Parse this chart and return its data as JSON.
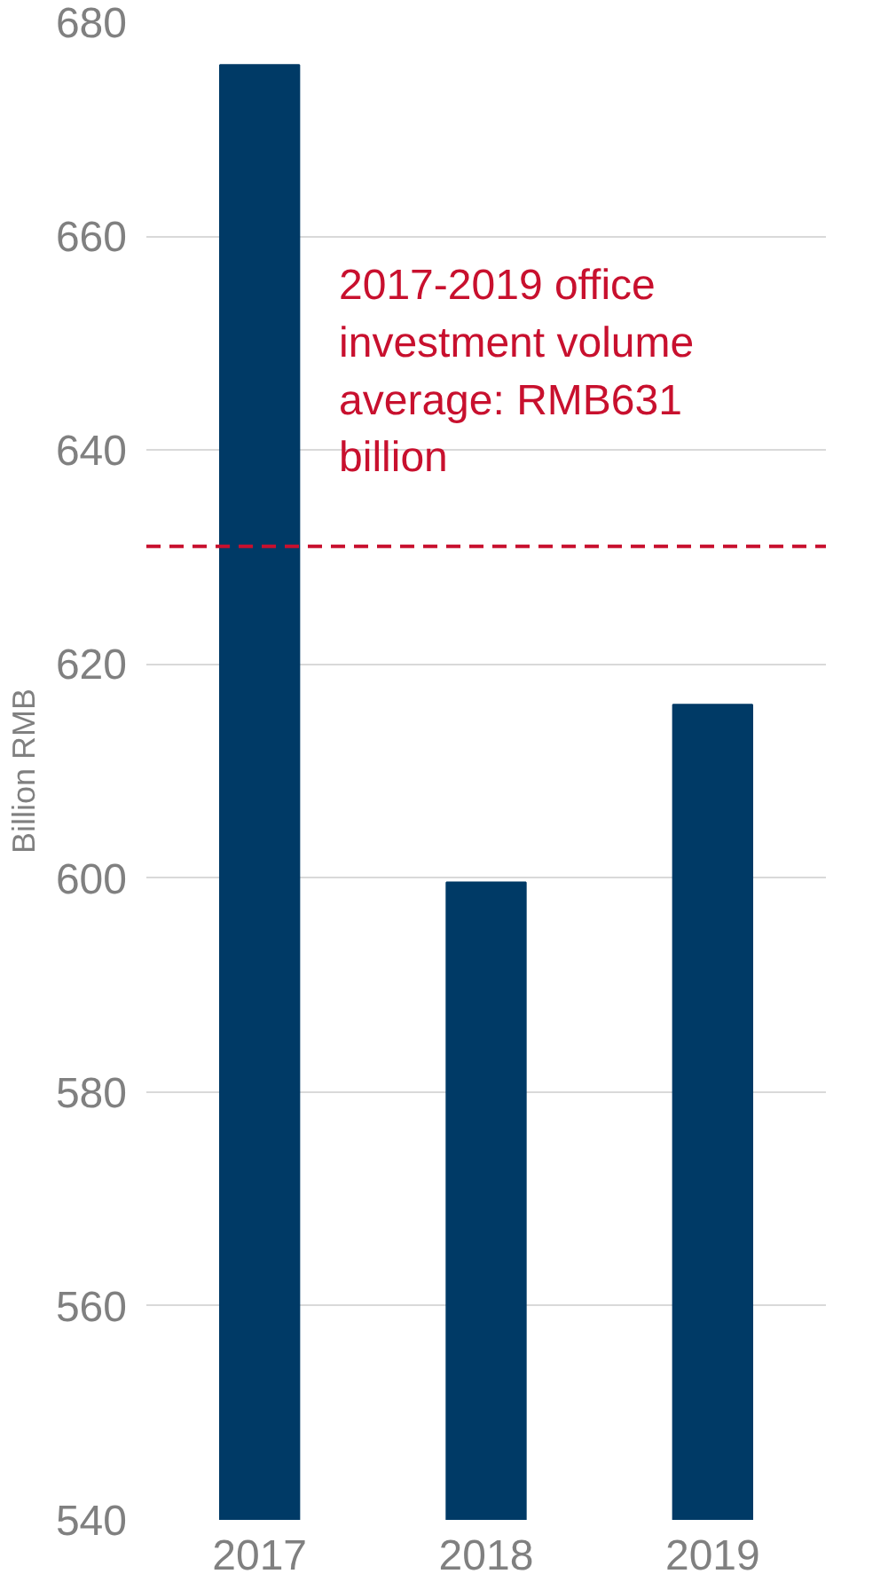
{
  "chart_data": {
    "type": "bar",
    "ylabel": "Billion RMB",
    "categories": [
      "2017",
      "2018",
      "2019"
    ],
    "values": [
      676,
      599.6,
      616.2
    ],
    "color": "#003a66",
    "ylim": [
      540,
      680
    ],
    "yticks": [
      540,
      560,
      580,
      600,
      620,
      640,
      660,
      680
    ],
    "grid": "y",
    "ref_lines": [
      {
        "axis": "y",
        "value": 631,
        "label": "2017-2019 office investment volume average: RMB631 billion",
        "color": "#c8102e",
        "line_style": "dashed"
      }
    ]
  }
}
